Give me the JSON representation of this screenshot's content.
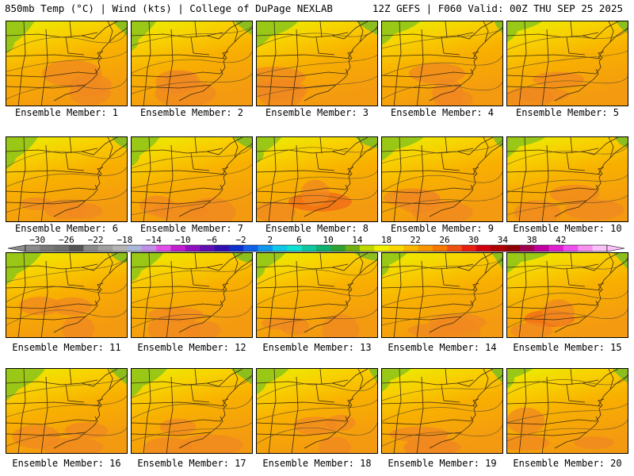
{
  "header": {
    "left_title": "850mb Temp (°C) | Wind (kts) | College of DuPage NEXLAB",
    "right_title": "12Z GEFS | F060 Valid: 00Z THU SEP 25 2025"
  },
  "panels": [
    {
      "label": "Ensemble Member: 1"
    },
    {
      "label": "Ensemble Member: 2"
    },
    {
      "label": "Ensemble Member: 3"
    },
    {
      "label": "Ensemble Member: 4"
    },
    {
      "label": "Ensemble Member: 5"
    },
    {
      "label": "Ensemble Member: 6"
    },
    {
      "label": "Ensemble Member: 7"
    },
    {
      "label": "Ensemble Member: 8"
    },
    {
      "label": "Ensemble Member: 9"
    },
    {
      "label": "Ensemble Member: 10"
    },
    {
      "label": "Ensemble Member: 11"
    },
    {
      "label": "Ensemble Member: 12"
    },
    {
      "label": "Ensemble Member: 13"
    },
    {
      "label": "Ensemble Member: 14"
    },
    {
      "label": "Ensemble Member: 15"
    },
    {
      "label": "Ensemble Member: 16"
    },
    {
      "label": "Ensemble Member: 17"
    },
    {
      "label": "Ensemble Member: 18"
    },
    {
      "label": "Ensemble Member: 19"
    },
    {
      "label": "Ensemble Member: 20"
    }
  ],
  "colorbar": {
    "tick_labels": [
      "−30",
      "−26",
      "−22",
      "−18",
      "−14",
      "−10",
      "−6",
      "−2",
      "2",
      "6",
      "10",
      "14",
      "18",
      "22",
      "26",
      "30",
      "34",
      "38",
      "42"
    ],
    "colors": [
      "#8c8c8c",
      "#787878",
      "#6e6e6e",
      "#555555",
      "#8a8a8a",
      "#a0a0a0",
      "#b4b4b4",
      "#a8b8d8",
      "#c090e8",
      "#e050e8",
      "#c020d0",
      "#9010c0",
      "#6010b0",
      "#3010b0",
      "#1030d0",
      "#1060e8",
      "#1098f0",
      "#10c8e8",
      "#10e0d0",
      "#10c8a0",
      "#10b070",
      "#30a030",
      "#70b010",
      "#c0d800",
      "#f0f000",
      "#f8d800",
      "#f8b800",
      "#f89800",
      "#f87800",
      "#f05010",
      "#e82010",
      "#d00010",
      "#b00000",
      "#900000",
      "#a00050",
      "#c000a0",
      "#e020d0",
      "#f050f0",
      "#f890f0",
      "#fac0f8"
    ]
  }
}
